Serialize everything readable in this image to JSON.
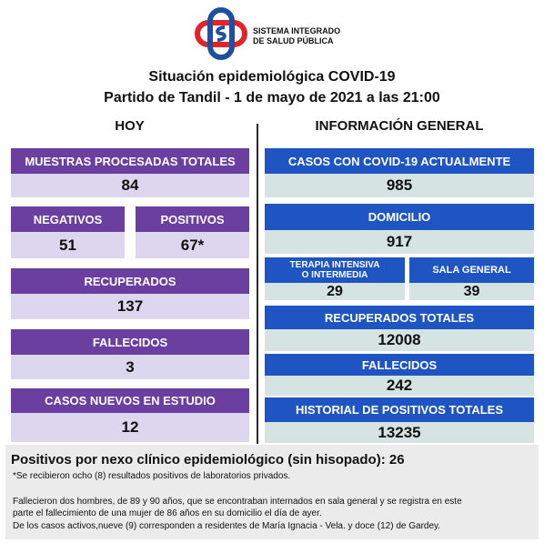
{
  "logo": {
    "line1": "SISTEMA INTEGRADO",
    "line2": "DE SALUD PÚBLICA"
  },
  "title": {
    "line1": "Situación epidemiológica COVID-19",
    "line2": "Partido de Tandil - 1 de mayo de 2021 a las 21:00"
  },
  "hoy": {
    "heading": "HOY",
    "muestras_label": "MUESTRAS PROCESADAS TOTALES",
    "muestras_value": "84",
    "negativos_label": "NEGATIVOS",
    "negativos_value": "51",
    "positivos_label": "POSITIVOS",
    "positivos_value": "67*",
    "recuperados_label": "RECUPERADOS",
    "recuperados_value": "137",
    "fallecidos_label": "FALLECIDOS",
    "fallecidos_value": "3",
    "casos_nuevos_label": "CASOS NUEVOS EN ESTUDIO",
    "casos_nuevos_value": "12"
  },
  "general": {
    "heading": "INFORMACIÓN GENERAL",
    "casos_activos_label": "CASOS CON COVID-19 ACTUALMENTE",
    "casos_activos_value": "985",
    "domicilio_label": "DOMICILIO",
    "domicilio_value": "917",
    "terapia_label_1": "TERAPIA INTENSIVA",
    "terapia_label_2": "O INTERMEDIA",
    "terapia_value": "29",
    "sala_label": "SALA GENERAL",
    "sala_value": "39",
    "recuperados_totales_label": "RECUPERADOS TOTALES",
    "recuperados_totales_value": "12008",
    "fallecidos_label": "FALLECIDOS",
    "fallecidos_value": "242",
    "historial_label": "HISTORIAL DE POSITIVOS TOTALES",
    "historial_value": "13235"
  },
  "footer": {
    "nexo": "Positivos por nexo clínico epidemiológico (sin hisopado): 26",
    "note": "*Se recibieron ocho (8) resultados positivos de laboratorios privados.",
    "deaths_line1": "Fallecieron dos hombres, de 89 y 90 años, que se encontraban internados en sala general y se registra en este",
    "deaths_line2": "parte el fallecimiento de una mujer de 86 años en su domicilio el día de ayer.",
    "active_line": "De los casos activos,nueve (9) corresponden a residentes de María Ignacia - Vela. y doce (12) de Gardey."
  },
  "colors": {
    "purple_bar": "#6a3fa0",
    "purple_value": "#dcd6ee",
    "blue_bar": "#1e55c2",
    "blue_value": "#d6e3e3",
    "logo_red": "#e2232a",
    "logo_blue": "#1f4fa0"
  }
}
